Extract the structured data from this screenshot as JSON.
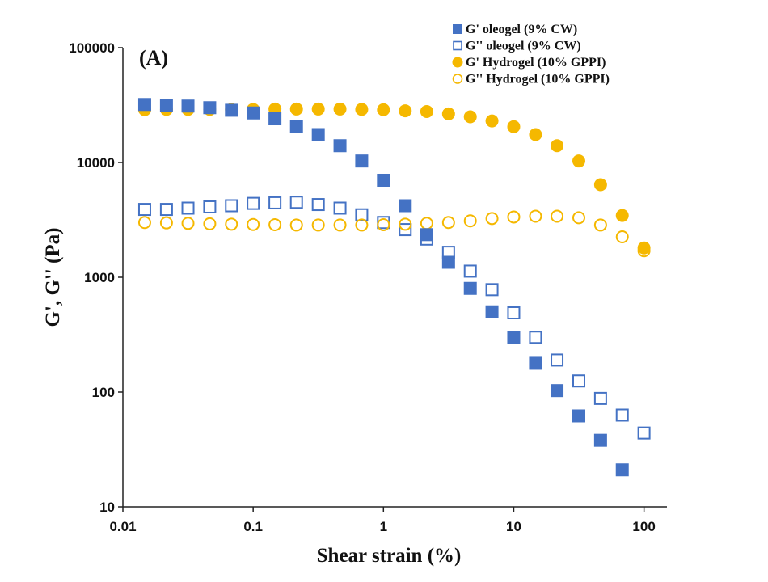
{
  "chart_data": {
    "type": "scatter",
    "title": "",
    "panel_label": "(A)",
    "xlabel": "Shear strain (%)",
    "ylabel": "G', G'' (Pa)",
    "x_scale": "log",
    "y_scale": "log",
    "xlim": [
      0.01,
      150
    ],
    "ylim": [
      10,
      100000
    ],
    "x_ticks": [
      0.01,
      0.1,
      1,
      10,
      100
    ],
    "x_tick_labels": [
      "0.01",
      "0.1",
      "1",
      "10",
      "100"
    ],
    "y_ticks": [
      10,
      100,
      1000,
      10000,
      100000
    ],
    "y_tick_labels": [
      "10",
      "100",
      "1000",
      "10000",
      "100000"
    ],
    "grid": false,
    "legend_position": "top-right",
    "series": [
      {
        "name": "G' oleogel (9% CW)",
        "marker": "square",
        "filled": true,
        "color": "#4472C4",
        "x": [
          0.0147,
          0.0216,
          0.0316,
          0.0464,
          0.0681,
          0.1,
          0.147,
          0.215,
          0.316,
          0.464,
          0.681,
          1.0,
          1.47,
          2.15,
          3.16,
          4.64,
          6.81,
          10.0,
          14.7,
          21.5,
          31.6,
          46.4,
          68.1
        ],
        "y": [
          32000,
          31500,
          31000,
          30000,
          28500,
          27000,
          24000,
          20500,
          17500,
          14000,
          10300,
          7000,
          4200,
          2350,
          1350,
          800,
          500,
          300,
          178,
          103,
          62,
          38,
          21
        ]
      },
      {
        "name": "G'' oleogel (9% CW)",
        "marker": "square",
        "filled": false,
        "color": "#4472C4",
        "x": [
          0.0147,
          0.0216,
          0.0316,
          0.0464,
          0.0681,
          0.1,
          0.147,
          0.215,
          0.316,
          0.464,
          0.681,
          1.0,
          1.47,
          2.15,
          3.16,
          4.64,
          6.81,
          10.0,
          14.7,
          21.5,
          31.6,
          46.4,
          68.1,
          100
        ],
        "y": [
          3900,
          3900,
          4000,
          4100,
          4200,
          4400,
          4450,
          4500,
          4300,
          4000,
          3500,
          3000,
          2600,
          2150,
          1650,
          1130,
          780,
          490,
          300,
          190,
          125,
          88,
          63,
          44
        ]
      },
      {
        "name": "G' Hydrogel (10% GPPI)",
        "marker": "circle",
        "filled": true,
        "color": "#F5B800",
        "x": [
          0.0147,
          0.0216,
          0.0316,
          0.0464,
          0.0681,
          0.1,
          0.147,
          0.215,
          0.316,
          0.464,
          0.681,
          1.0,
          1.47,
          2.15,
          3.16,
          4.64,
          6.81,
          10.0,
          14.7,
          21.5,
          31.6,
          46.4,
          68.1,
          100
        ],
        "y": [
          28800,
          29000,
          29000,
          29000,
          29000,
          29000,
          29200,
          29200,
          29200,
          29200,
          29000,
          28800,
          28200,
          27800,
          26500,
          25000,
          23000,
          20500,
          17500,
          14000,
          10300,
          6400,
          3450,
          1800
        ]
      },
      {
        "name": "G'' Hydrogel (10% GPPI)",
        "marker": "circle",
        "filled": false,
        "color": "#F5B800",
        "x": [
          0.0147,
          0.0216,
          0.0316,
          0.0464,
          0.0681,
          0.1,
          0.147,
          0.215,
          0.316,
          0.464,
          0.681,
          1.0,
          1.47,
          2.15,
          3.16,
          4.64,
          6.81,
          10.0,
          14.7,
          21.5,
          31.6,
          46.4,
          68.1,
          100
        ],
        "y": [
          3000,
          2980,
          2950,
          2920,
          2900,
          2880,
          2870,
          2850,
          2850,
          2850,
          2850,
          2870,
          2900,
          2950,
          3000,
          3100,
          3250,
          3350,
          3400,
          3400,
          3300,
          2850,
          2250,
          1700
        ]
      }
    ]
  }
}
